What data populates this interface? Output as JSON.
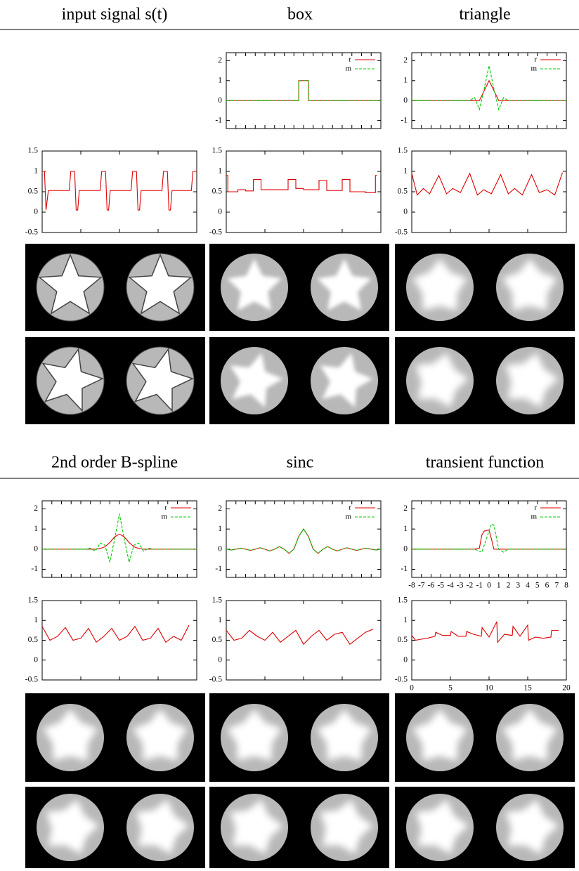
{
  "headers": [
    [
      "input signal s(t)",
      "box",
      "triangle"
    ],
    [
      "2nd order B-spline",
      "sinc",
      "transient function"
    ]
  ],
  "chart_data": [
    {
      "type": "line",
      "xlim": [
        -8,
        8
      ],
      "ylim": [
        -1.4,
        2.4
      ],
      "xticks": [
        -8,
        -7,
        -6,
        -5,
        -4,
        -3,
        -2,
        -1,
        0,
        1,
        2,
        3,
        4,
        5,
        6,
        7,
        8
      ],
      "xtick_labels": false,
      "yticks": [
        -1,
        0,
        1,
        2
      ],
      "legend": "upper right",
      "x": [
        -8,
        -0.5,
        -0.5,
        0.5,
        0.5,
        8
      ],
      "series": [
        {
          "name": "r",
          "color": "#dd0000",
          "line_style": "solid",
          "values": [
            0,
            0,
            1,
            1,
            0,
            0
          ]
        },
        {
          "name": "m",
          "color": "#00cc00",
          "line_style": "dashed",
          "values": [
            0,
            0,
            1,
            1,
            0,
            0
          ]
        }
      ]
    },
    {
      "type": "line",
      "xlim": [
        -8,
        8
      ],
      "ylim": [
        -1.4,
        2.4
      ],
      "xticks": [
        -8,
        -7,
        -6,
        -5,
        -4,
        -3,
        -2,
        -1,
        0,
        1,
        2,
        3,
        4,
        5,
        6,
        7,
        8
      ],
      "xtick_labels": false,
      "yticks": [
        -1,
        0,
        1,
        2
      ],
      "legend": "upper right",
      "x": [
        -8,
        -2.5,
        -2,
        -1.5,
        -1,
        -0.5,
        0,
        0.5,
        1,
        1.5,
        2,
        2.5,
        8
      ],
      "series": [
        {
          "name": "r",
          "color": "#dd0000",
          "line_style": "solid",
          "values": [
            0,
            0,
            0,
            0,
            0,
            0.5,
            1,
            0.5,
            0,
            0,
            0,
            0,
            0
          ]
        },
        {
          "name": "m",
          "color": "#00cc00",
          "line_style": "dashed",
          "values": [
            0,
            0,
            0,
            0.15,
            -0.45,
            0.6,
            1.75,
            0.6,
            -0.45,
            0.15,
            0,
            0,
            0
          ]
        }
      ]
    },
    {
      "type": "line",
      "xlim": [
        0,
        20
      ],
      "ylim": [
        -0.5,
        1.5
      ],
      "xticks": [
        0,
        5,
        10,
        15,
        20
      ],
      "xtick_labels": false,
      "yticks": [
        -0.5,
        0,
        0.5,
        1,
        1.5
      ],
      "x": [
        0,
        0.3,
        0.5,
        0.8,
        3.5,
        3.7,
        4.2,
        4.4,
        4.6,
        4.8,
        7.5,
        7.7,
        8.2,
        8.4,
        8.6,
        8.8,
        11.5,
        11.7,
        12.2,
        12.4,
        12.6,
        12.8,
        15.5,
        15.7,
        16.2,
        16.4,
        16.6,
        16.8,
        19.3,
        19.5,
        20
      ],
      "series": [
        {
          "color": "#dd0000",
          "line_style": "solid",
          "values": [
            1,
            1,
            0.05,
            0.53,
            0.53,
            1,
            1,
            0.05,
            0.05,
            0.53,
            0.53,
            1,
            1,
            0.05,
            0.05,
            0.53,
            0.53,
            1,
            1,
            0.05,
            0.05,
            0.53,
            0.53,
            1,
            1,
            0.05,
            0.05,
            0.53,
            0.53,
            1,
            1
          ]
        }
      ]
    },
    {
      "type": "line",
      "xlim": [
        0,
        20
      ],
      "ylim": [
        -0.5,
        1.5
      ],
      "xticks": [
        0,
        5,
        10,
        15,
        20
      ],
      "xtick_labels": false,
      "yticks": [
        -0.5,
        0,
        0.5,
        1,
        1.5
      ],
      "x": [
        0,
        0.2,
        0.2,
        1.5,
        1.5,
        2.5,
        2.5,
        3.5,
        3.5,
        4.5,
        4.5,
        8,
        8,
        9,
        9,
        10,
        10,
        12,
        12,
        13,
        13,
        15,
        15,
        16,
        16,
        18,
        18,
        19.3,
        19.3,
        19.5
      ],
      "series": [
        {
          "color": "#dd0000",
          "line_style": "solid",
          "values": [
            0.9,
            0.9,
            0.5,
            0.5,
            0.55,
            0.55,
            0.52,
            0.52,
            0.8,
            0.8,
            0.55,
            0.55,
            0.8,
            0.8,
            0.58,
            0.58,
            0.55,
            0.55,
            0.78,
            0.78,
            0.53,
            0.53,
            0.8,
            0.8,
            0.5,
            0.5,
            0.48,
            0.48,
            0.9,
            0.9
          ]
        }
      ]
    },
    {
      "type": "line",
      "xlim": [
        0,
        20
      ],
      "ylim": [
        -0.5,
        1.5
      ],
      "xticks": [
        0,
        5,
        10,
        15,
        20
      ],
      "xtick_labels": false,
      "yticks": [
        -0.5,
        0,
        0.5,
        1,
        1.5
      ],
      "x": [
        0,
        0.7,
        1.5,
        2.3,
        3.5,
        4.5,
        5.3,
        6.3,
        7.5,
        8.5,
        9.3,
        10.3,
        11.5,
        12.5,
        13.3,
        14.3,
        15.5,
        16.5,
        17.5,
        18.5,
        19.5
      ],
      "series": [
        {
          "color": "#dd0000",
          "line_style": "solid",
          "values": [
            0.95,
            0.42,
            0.58,
            0.45,
            0.9,
            0.45,
            0.58,
            0.48,
            0.95,
            0.42,
            0.55,
            0.45,
            0.92,
            0.45,
            0.58,
            0.42,
            0.92,
            0.48,
            0.55,
            0.42,
            0.97
          ]
        }
      ]
    },
    {
      "type": "line",
      "xlim": [
        -8,
        8
      ],
      "ylim": [
        -1.4,
        2.4
      ],
      "xticks": [
        -8,
        -7,
        -6,
        -5,
        -4,
        -3,
        -2,
        -1,
        0,
        1,
        2,
        3,
        4,
        5,
        6,
        7,
        8
      ],
      "xtick_labels": false,
      "yticks": [
        -1,
        0,
        1,
        2
      ],
      "legend": "upper right",
      "x": [
        -8,
        -4,
        -3.5,
        -3,
        -2.5,
        -2,
        -1.5,
        -1,
        -0.5,
        0,
        0.5,
        1,
        1.5,
        2,
        2.5,
        3,
        3.5,
        4,
        8
      ],
      "series": [
        {
          "name": "r",
          "color": "#dd0000",
          "line_style": "solid",
          "values": [
            0,
            0,
            0,
            0,
            0,
            0.03,
            0.12,
            0.33,
            0.61,
            0.75,
            0.61,
            0.33,
            0.12,
            0.03,
            0,
            0,
            0,
            0,
            0
          ]
        },
        {
          "name": "m",
          "color": "#00cc00",
          "line_style": "dashed",
          "values": [
            0,
            0,
            0,
            0.05,
            -0.1,
            0.3,
            0.2,
            -0.65,
            0.5,
            1.75,
            0.5,
            -0.65,
            0.2,
            0.3,
            -0.1,
            0.05,
            0,
            0,
            0
          ]
        }
      ]
    },
    {
      "type": "line",
      "xlim": [
        -8,
        8
      ],
      "ylim": [
        -1.4,
        2.4
      ],
      "xticks": [
        -8,
        -7,
        -6,
        -5,
        -4,
        -3,
        -2,
        -1,
        0,
        1,
        2,
        3,
        4,
        5,
        6,
        7,
        8
      ],
      "xtick_labels": false,
      "yticks": [
        -1,
        0,
        1,
        2
      ],
      "legend": "upper right",
      "x": [
        -8,
        -7.5,
        -7,
        -6.5,
        -6,
        -5.5,
        -5,
        -4.5,
        -4,
        -3.5,
        -3,
        -2.5,
        -2,
        -1.5,
        -1,
        -0.5,
        0,
        0.5,
        1,
        1.5,
        2,
        2.5,
        3,
        3.5,
        4,
        4.5,
        5,
        5.5,
        6,
        6.5,
        7,
        7.5,
        8
      ],
      "series": [
        {
          "name": "r",
          "color": "#dd0000",
          "line_style": "solid",
          "values": [
            0,
            -0.042,
            0,
            0.049,
            0,
            -0.058,
            0,
            0.071,
            0,
            -0.091,
            0,
            0.127,
            0,
            -0.212,
            0,
            0.637,
            1,
            0.637,
            0,
            -0.212,
            0,
            0.127,
            0,
            -0.091,
            0,
            0.071,
            0,
            -0.058,
            0,
            0.049,
            0,
            -0.042,
            0
          ]
        },
        {
          "name": "m",
          "color": "#00cc00",
          "line_style": "dashed",
          "values": [
            0,
            -0.042,
            0,
            0.049,
            0,
            -0.058,
            0,
            0.071,
            0,
            -0.091,
            0,
            0.127,
            0,
            -0.212,
            0,
            0.637,
            1,
            0.637,
            0,
            -0.212,
            0,
            0.127,
            0,
            -0.091,
            0,
            0.071,
            0,
            -0.058,
            0,
            0.049,
            0,
            -0.042,
            0
          ]
        }
      ]
    },
    {
      "type": "line",
      "xlim": [
        -8,
        8
      ],
      "ylim": [
        -1.4,
        2.4
      ],
      "xticks": [
        -8,
        -7,
        -6,
        -5,
        -4,
        -3,
        -2,
        -1,
        0,
        1,
        2,
        3,
        4,
        5,
        6,
        7,
        8
      ],
      "xtick_labels": true,
      "yticks": [
        -1,
        0,
        1,
        2
      ],
      "legend": "upper right",
      "x": [
        -8,
        -1.5,
        -1,
        -0.75,
        -0.5,
        0,
        0.25,
        0.5,
        0.75,
        1,
        1.5,
        2,
        8
      ],
      "series": [
        {
          "name": "r",
          "color": "#dd0000",
          "line_style": "solid",
          "values": [
            0,
            0,
            0.05,
            0.7,
            0.9,
            0.95,
            0.5,
            0,
            0,
            0,
            0,
            0,
            0
          ]
        },
        {
          "name": "m",
          "color": "#00cc00",
          "line_style": "dashed",
          "values": [
            0,
            0,
            -0.1,
            -0.15,
            0.2,
            0.9,
            1.25,
            1.2,
            0.6,
            0,
            -0.15,
            0,
            0
          ]
        }
      ]
    },
    {
      "type": "line",
      "xlim": [
        0,
        20
      ],
      "ylim": [
        -0.5,
        1.5
      ],
      "xticks": [
        0,
        5,
        10,
        15,
        20
      ],
      "xtick_labels": false,
      "yticks": [
        -0.5,
        0,
        0.5,
        1,
        1.5
      ],
      "x": [
        0,
        1,
        2,
        3,
        4,
        5,
        6,
        7,
        8,
        9,
        10,
        11,
        12,
        13,
        14,
        15,
        16,
        17,
        18,
        19
      ],
      "series": [
        {
          "color": "#dd0000",
          "line_style": "solid",
          "values": [
            0.85,
            0.5,
            0.6,
            0.82,
            0.5,
            0.55,
            0.8,
            0.45,
            0.6,
            0.8,
            0.5,
            0.6,
            0.85,
            0.5,
            0.55,
            0.8,
            0.45,
            0.6,
            0.5,
            0.88
          ]
        }
      ]
    },
    {
      "type": "line",
      "xlim": [
        0,
        20
      ],
      "ylim": [
        -0.5,
        1.5
      ],
      "xticks": [
        0,
        5,
        10,
        15,
        20
      ],
      "xtick_labels": false,
      "yticks": [
        -0.5,
        0,
        0.5,
        1,
        1.5
      ],
      "x": [
        0,
        1,
        2,
        3,
        4,
        5,
        6,
        7,
        8,
        9,
        10,
        11,
        12,
        13,
        14,
        15,
        16,
        17,
        18,
        19
      ],
      "series": [
        {
          "color": "#dd0000",
          "line_style": "solid",
          "values": [
            0.75,
            0.5,
            0.55,
            0.75,
            0.6,
            0.5,
            0.7,
            0.45,
            0.6,
            0.75,
            0.4,
            0.6,
            0.75,
            0.5,
            0.65,
            0.7,
            0.4,
            0.55,
            0.7,
            0.78
          ]
        }
      ]
    },
    {
      "type": "line",
      "xlim": [
        0,
        20
      ],
      "ylim": [
        -0.5,
        1.5
      ],
      "xticks": [
        0,
        5,
        10,
        15,
        20
      ],
      "xtick_labels": true,
      "yticks": [
        -0.5,
        0,
        0.5,
        1,
        1.5
      ],
      "x": [
        0,
        0.5,
        1,
        2,
        3,
        3.1,
        4,
        5,
        5.1,
        6,
        7,
        7.1,
        8,
        9,
        9.1,
        10,
        11,
        11.1,
        12,
        13,
        13.1,
        14,
        15,
        15.1,
        16,
        17,
        18,
        18.1,
        19
      ],
      "series": [
        {
          "color": "#dd0000",
          "line_style": "solid",
          "values": [
            0.62,
            0.5,
            0.52,
            0.55,
            0.6,
            0.7,
            0.62,
            0.62,
            0.72,
            0.6,
            0.6,
            0.72,
            0.65,
            0.6,
            0.82,
            0.58,
            0.97,
            0.45,
            0.65,
            0.62,
            0.85,
            0.6,
            0.88,
            0.5,
            0.58,
            0.55,
            0.58,
            0.75,
            0.75
          ]
        }
      ]
    }
  ]
}
